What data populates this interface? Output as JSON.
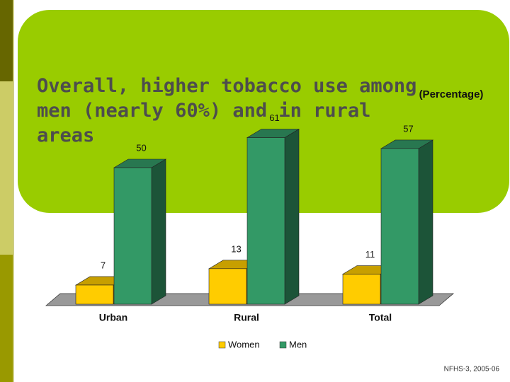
{
  "chart_data": {
    "type": "bar3d",
    "title": "Overall, higher tobacco use among men (nearly 60%) and in rural areas",
    "subtitle": "(Percentage)",
    "categories": [
      "Urban",
      "Rural",
      "Total"
    ],
    "series": [
      {
        "name": "Women",
        "color": "#ffcc00",
        "values": [
          7,
          13,
          11
        ]
      },
      {
        "name": "Men",
        "color": "#339966",
        "values": [
          50,
          61,
          57
        ]
      }
    ],
    "source": "NFHS-3, 2005-06"
  }
}
